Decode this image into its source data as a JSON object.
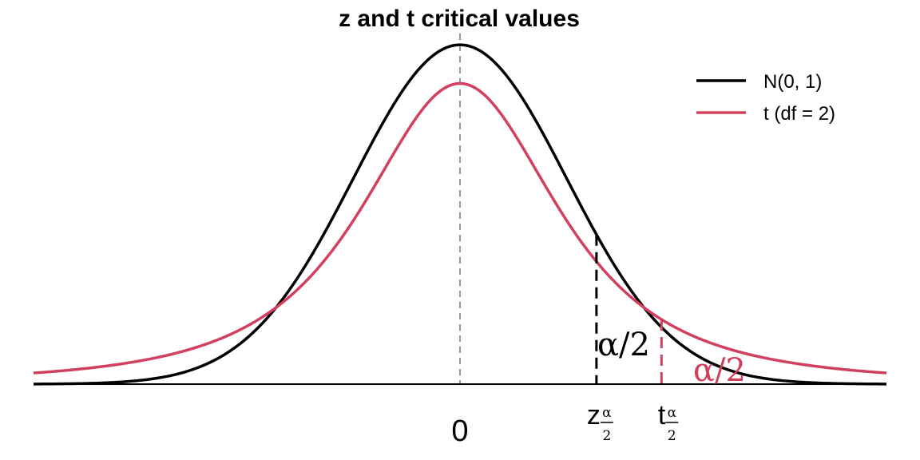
{
  "chart_data": {
    "type": "line",
    "title": "z and t critical values",
    "xlabel": "",
    "ylabel": "",
    "xlim": [
      -4.0,
      4.0
    ],
    "ylim": [
      0,
      0.4
    ],
    "grid": false,
    "legend_position": "top-right",
    "series": [
      {
        "name": "N(0, 1)",
        "distribution": "normal",
        "color": "#000000"
      },
      {
        "name": "t (df = 2)",
        "distribution": "student-t",
        "df": 2,
        "color": "#d1405e"
      }
    ],
    "x_ticks": [
      {
        "value": 0,
        "label": "0"
      }
    ],
    "critical_values": [
      {
        "name": "z",
        "value": 1.28,
        "main_label": "z",
        "fraction_numerator": "α",
        "fraction_denominator": "2",
        "color": "#000000"
      },
      {
        "name": "t",
        "value": 1.89,
        "main_label": "t",
        "fraction_numerator": "α",
        "fraction_denominator": "2",
        "color": "#d1405e"
      }
    ],
    "annotations": [
      {
        "text": "α/2",
        "color": "#000000"
      },
      {
        "text": "α/2",
        "color": "#d1405e"
      }
    ]
  }
}
